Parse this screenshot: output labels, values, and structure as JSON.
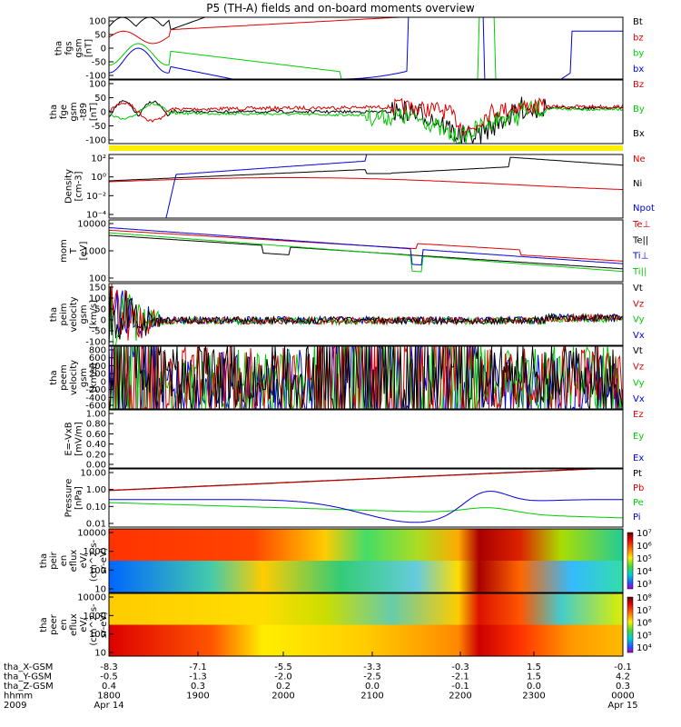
{
  "title": "P5 (TH-A) fields and on-board moments overview",
  "colors": {
    "black": "#000000",
    "red": "#dd0000",
    "green": "#00cc00",
    "blue": "#0000dd",
    "yellow": "#ffee00"
  },
  "chart_data": [
    {
      "type": "line",
      "ylabel": [
        "tha",
        "fgs",
        "gsm",
        "[nT]"
      ],
      "yticks": [
        "100",
        "50",
        "0",
        "-50",
        "-100"
      ],
      "legend": [
        {
          "label": "Bt",
          "color": "#000000"
        },
        {
          "label": "bz",
          "color": "#dd0000"
        },
        {
          "label": "by",
          "color": "#00cc00"
        },
        {
          "label": "bx",
          "color": "#0000dd"
        }
      ]
    },
    {
      "type": "line",
      "ylabel": [
        "tha",
        "fge",
        "gsm",
        "-t89",
        "[nT]"
      ],
      "yticks": [
        "100",
        "50",
        "0",
        "-50",
        "-100"
      ],
      "legend": [
        {
          "label": "Bz",
          "color": "#dd0000"
        },
        {
          "label": "By",
          "color": "#00cc00"
        },
        {
          "label": "Bx",
          "color": "#000000"
        }
      ]
    },
    {
      "type": "line",
      "ylabel": [
        "Density",
        "[cm-3]"
      ],
      "yticks": [
        "10²",
        "10⁰",
        "10⁻²",
        "10⁻⁴"
      ],
      "legend": [
        {
          "label": "Ne",
          "color": "#dd0000"
        },
        {
          "label": "Ni",
          "color": "#000000"
        },
        {
          "label": "Npot",
          "color": "#0000dd"
        }
      ]
    },
    {
      "type": "line",
      "ylabel": [
        "mom",
        "T",
        "[eV]"
      ],
      "yticks": [
        "10000",
        "1000",
        "100"
      ],
      "legend": [
        {
          "label": "Te⊥",
          "color": "#dd0000"
        },
        {
          "label": "Te||",
          "color": "#000000"
        },
        {
          "label": "Ti⊥",
          "color": "#0000dd"
        },
        {
          "label": "Ti||",
          "color": "#00cc00"
        }
      ]
    },
    {
      "type": "line",
      "ylabel": [
        "tha",
        "peim",
        "velocity",
        "gsm",
        "[km/s]"
      ],
      "yticks": [
        "150",
        "100",
        "50",
        "0",
        "-50",
        "-100"
      ],
      "legend": [
        {
          "label": "Vt",
          "color": "#000000"
        },
        {
          "label": "Vz",
          "color": "#dd0000"
        },
        {
          "label": "Vy",
          "color": "#00cc00"
        },
        {
          "label": "Vx",
          "color": "#0000dd"
        }
      ]
    },
    {
      "type": "line",
      "ylabel": [
        "tha",
        "peem",
        "velocity",
        "gsm",
        "[km/s]"
      ],
      "yticks": [
        "800",
        "600",
        "400",
        "200",
        "0",
        "-200",
        "-400",
        "-600"
      ],
      "legend": [
        {
          "label": "Vt",
          "color": "#000000"
        },
        {
          "label": "Vz",
          "color": "#dd0000"
        },
        {
          "label": "Vy",
          "color": "#00cc00"
        },
        {
          "label": "Vx",
          "color": "#0000dd"
        }
      ]
    },
    {
      "type": "line",
      "ylabel": [
        "E=-VxB",
        "[mV/m]"
      ],
      "yticks": [
        "1.00",
        "0.80",
        "0.60",
        "0.40",
        "0.20",
        "0.00"
      ],
      "legend": [
        {
          "label": "Ez",
          "color": "#dd0000"
        },
        {
          "label": "Ey",
          "color": "#00cc00"
        },
        {
          "label": "Ex",
          "color": "#0000dd"
        }
      ]
    },
    {
      "type": "line",
      "ylabel": [
        "Pressure",
        "[nPa]"
      ],
      "yticks": [
        "10.00",
        "1.00",
        "0.10",
        "0.01"
      ],
      "legend": [
        {
          "label": "Pt",
          "color": "#000000"
        },
        {
          "label": "Pb",
          "color": "#dd0000"
        },
        {
          "label": "Pe",
          "color": "#00cc00"
        },
        {
          "label": "Pi",
          "color": "#0000dd"
        }
      ]
    },
    {
      "type": "heatmap",
      "ylabel": [
        "tha",
        "peir",
        "en",
        "eflux",
        "eV/",
        "(cm^2-s-",
        "sr-eV)"
      ],
      "yticks": [
        "10000",
        "1000",
        "100",
        "10"
      ],
      "colorbar": [
        "10⁷",
        "10⁶",
        "10⁵",
        "10⁴",
        "10³"
      ]
    },
    {
      "type": "heatmap",
      "ylabel": [
        "tha",
        "peer",
        "en",
        "eflux",
        "eV/",
        "(cm^2-s-",
        "sr-eV)"
      ],
      "yticks": [
        "10000",
        "1000",
        "100",
        "10"
      ],
      "colorbar": [
        "10⁸",
        "10⁷",
        "10⁶",
        "10⁵",
        "10⁴"
      ]
    }
  ],
  "xaxis": {
    "rows": [
      {
        "label": "tha_X-GSM",
        "values": [
          "-8.3",
          "-7.1",
          "-5.5",
          "-3.3",
          "-0.3",
          "1.5",
          "-0.1"
        ]
      },
      {
        "label": "tha_Y-GSM",
        "values": [
          "-0.5",
          "-1.3",
          "-2.0",
          "-2.5",
          "-2.1",
          "1.5",
          "4.2"
        ]
      },
      {
        "label": "tha_Z-GSM",
        "values": [
          "0.4",
          "0.3",
          "0.2",
          "0.0",
          "-0.1",
          "0.0",
          "0.3"
        ]
      },
      {
        "label": "hhmm",
        "values": [
          "1800",
          "1900",
          "2000",
          "2100",
          "2200",
          "2300",
          "0000"
        ]
      },
      {
        "label": "2009",
        "values": [
          "Apr 14",
          "",
          "",
          "",
          "",
          "",
          "Apr 15"
        ]
      }
    ]
  }
}
